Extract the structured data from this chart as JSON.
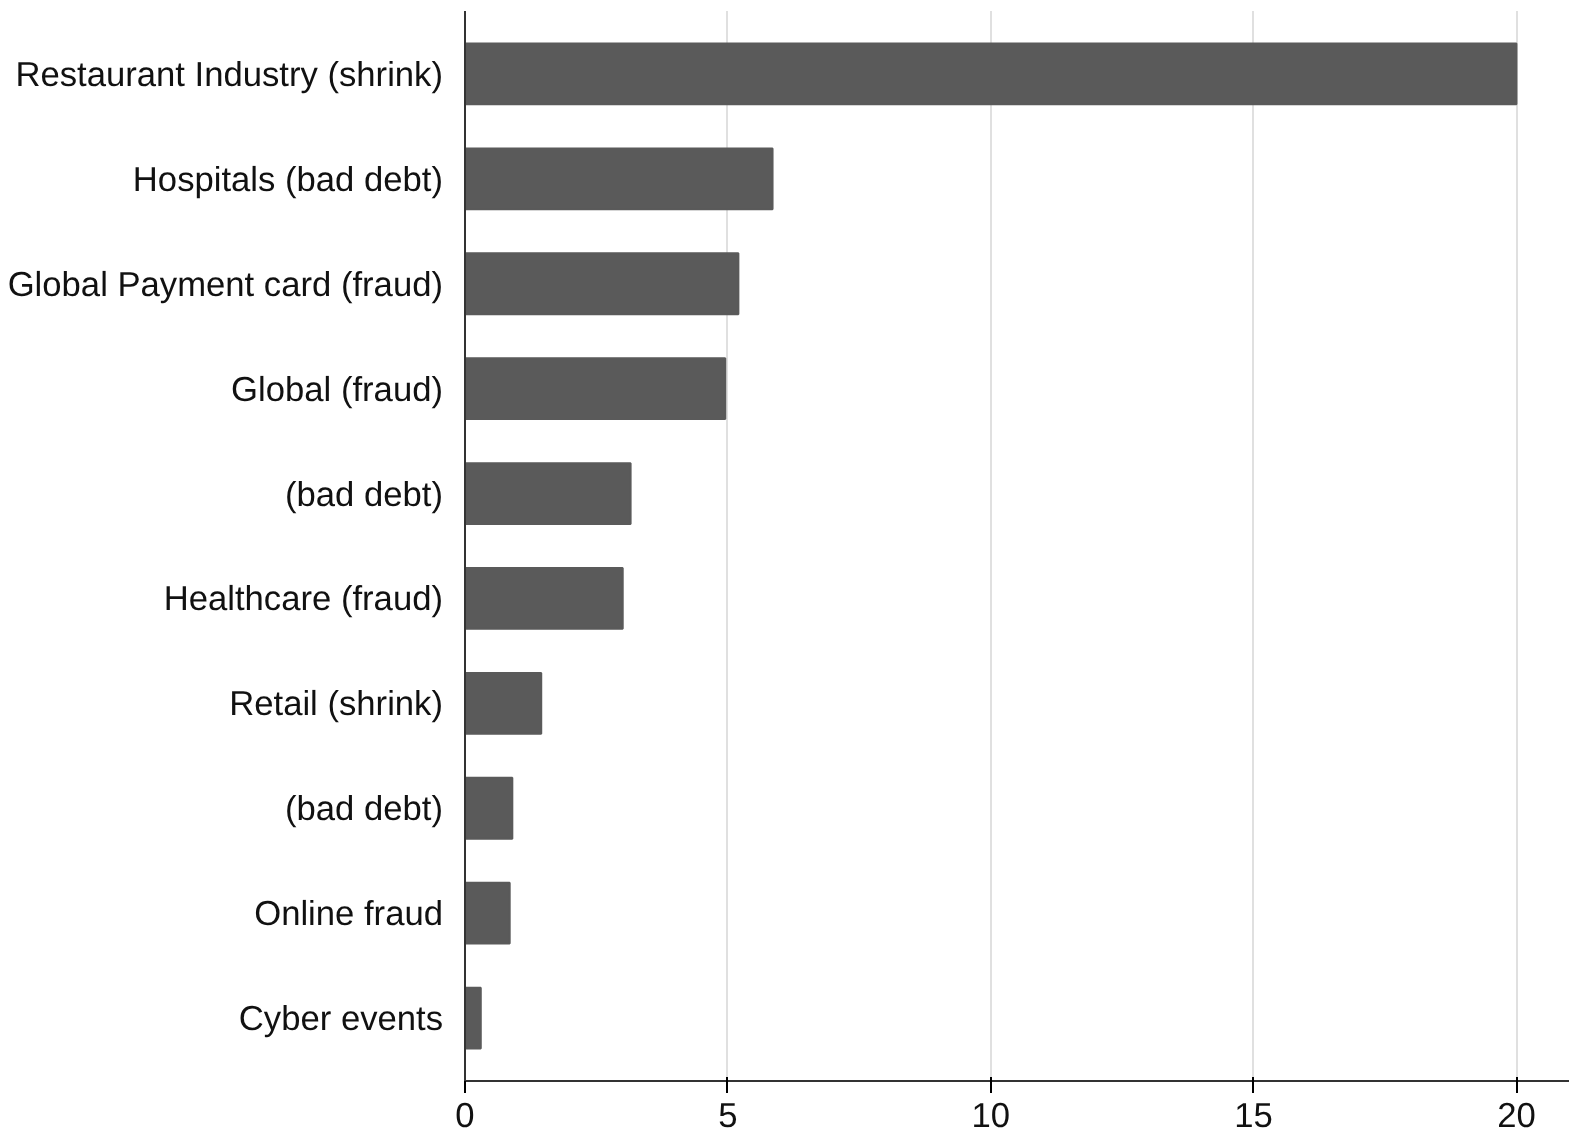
{
  "chart_data": {
    "type": "bar",
    "orientation": "horizontal",
    "categories": [
      "Restaurant Industry (shrink)",
      "Hospitals (bad debt)",
      "Global Payment card (fraud)",
      "Global (fraud)",
      "(bad debt)",
      "Healthcare (fraud)",
      "Retail (shrink)",
      "(bad debt)",
      "Online fraud",
      "Cyber events"
    ],
    "values": [
      20,
      5.85,
      5.2,
      4.95,
      3.15,
      3.0,
      1.45,
      0.9,
      0.85,
      0.3
    ],
    "color": "#5a5a5a",
    "xlim": [
      0,
      21
    ],
    "xticks": [
      0,
      5,
      10,
      15,
      20
    ],
    "grid": "x"
  }
}
